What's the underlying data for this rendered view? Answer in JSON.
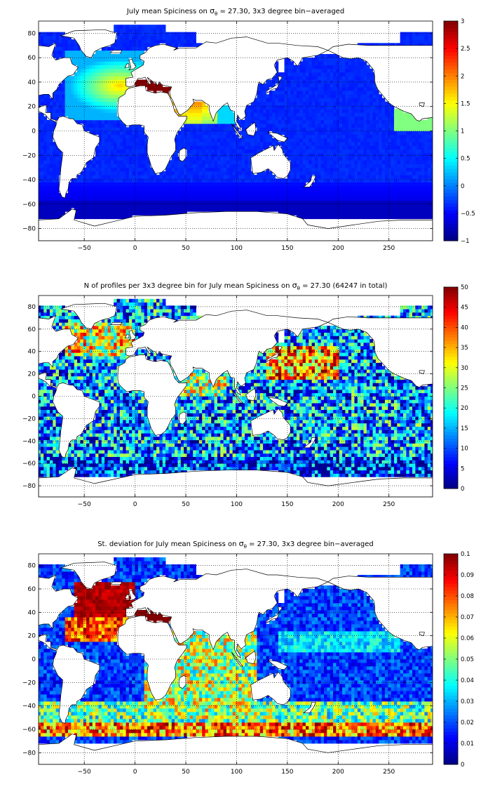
{
  "chart_data": [
    {
      "type": "heatmap",
      "title_pre": "July mean Spiciness on ",
      "title_sym": "σ",
      "title_sub": "θ",
      "title_post": " = 27.30, 3x3 degree bin−averaged",
      "xlim": [
        -95,
        293
      ],
      "ylim": [
        -90,
        90
      ],
      "xticks": [
        -50,
        0,
        50,
        100,
        150,
        200,
        250
      ],
      "yticks": [
        -80,
        -60,
        -40,
        -20,
        0,
        20,
        40,
        60,
        80
      ],
      "grid": true,
      "colormap": "jet",
      "clim": [
        -1,
        3
      ],
      "cticks": [
        -1,
        -0.5,
        0,
        0.5,
        1,
        1.5,
        2,
        2.5,
        3
      ],
      "bin_deg": 3,
      "field": "spiciness"
    },
    {
      "type": "heatmap",
      "title_pre": "N of profiles per 3x3 degree bin for July mean Spiciness on ",
      "title_sym": "σ",
      "title_sub": "θ",
      "title_post": " = 27.30 (64247 in total)",
      "xlim": [
        -95,
        293
      ],
      "ylim": [
        -90,
        90
      ],
      "xticks": [
        -50,
        0,
        50,
        100,
        150,
        200,
        250
      ],
      "yticks": [
        -80,
        -60,
        -40,
        -20,
        0,
        20,
        40,
        60,
        80
      ],
      "grid": true,
      "colormap": "jet",
      "clim": [
        0,
        50
      ],
      "cticks": [
        0,
        5,
        10,
        15,
        20,
        25,
        30,
        35,
        40,
        45,
        50
      ],
      "total_profiles": 64247,
      "bin_deg": 3,
      "field": "count"
    },
    {
      "type": "heatmap",
      "title_pre": "St. deviation for July mean Spiciness on ",
      "title_sym": "σ",
      "title_sub": "θ",
      "title_post": " = 27.30, 3x3 degree bin−averaged",
      "xlim": [
        -95,
        293
      ],
      "ylim": [
        -90,
        90
      ],
      "xticks": [
        -50,
        0,
        50,
        100,
        150,
        200,
        250
      ],
      "yticks": [
        -80,
        -60,
        -40,
        -20,
        0,
        20,
        40,
        60,
        80
      ],
      "grid": true,
      "colormap": "jet",
      "clim": [
        0,
        0.1
      ],
      "cticks": [
        0,
        0.01,
        0.02,
        0.03,
        0.04,
        0.05,
        0.06,
        0.07,
        0.08,
        0.09,
        0.1
      ],
      "bin_deg": 3,
      "field": "std"
    }
  ],
  "colors": {
    "land": "#ffffff",
    "coast": "#000000",
    "grid": "#000000",
    "background": "#ffffff"
  }
}
